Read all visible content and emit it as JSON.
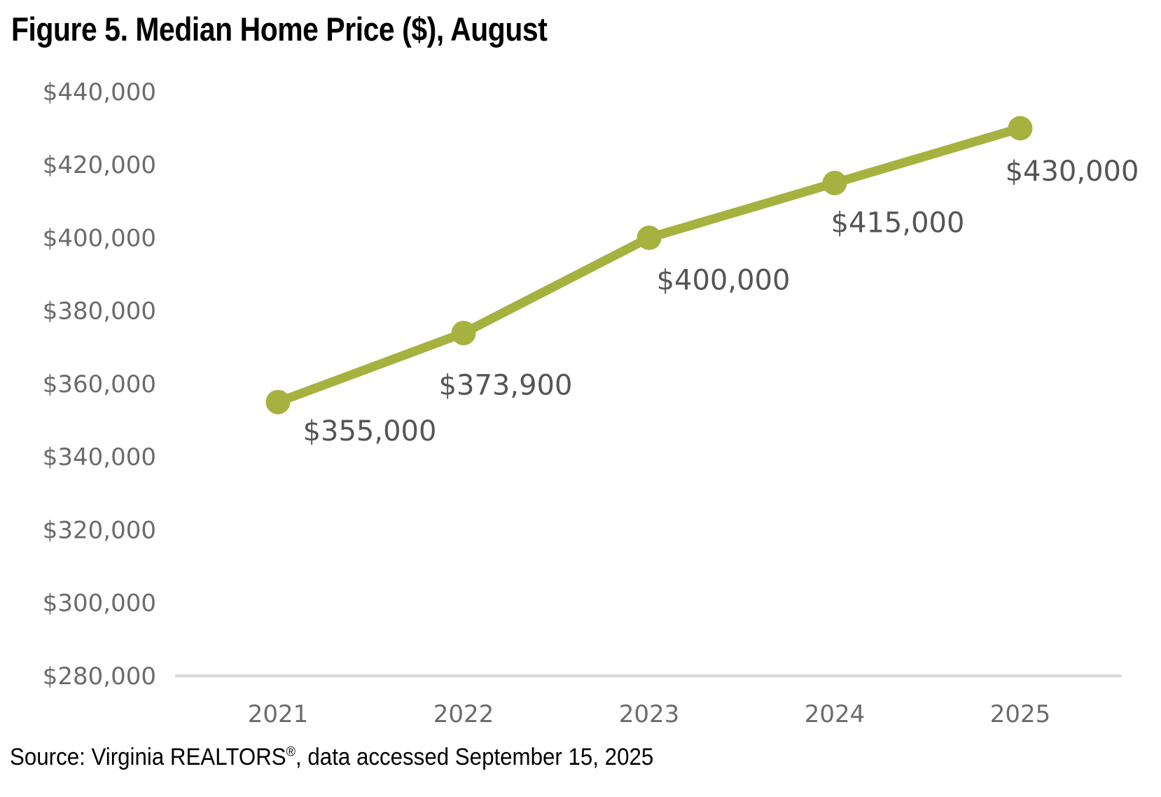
{
  "title": "Figure 5. Median Home Price ($), August",
  "source": {
    "prefix": "Source: Virginia REALTORS",
    "registered_mark": "®",
    "suffix": ", data accessed September 15, 2025"
  },
  "chart_data": {
    "type": "line",
    "title": "Figure 5. Median Home Price ($), August",
    "categories": [
      "2021",
      "2022",
      "2023",
      "2024",
      "2025"
    ],
    "series": [
      {
        "name": "Median Home Price ($), August",
        "values": [
          355000,
          373900,
          400000,
          415000,
          430000
        ]
      }
    ],
    "values": [
      355000,
      373900,
      400000,
      415000,
      430000
    ],
    "value_labels": [
      "$355,000",
      "$373,900",
      "$400,000",
      "$415,000",
      "$430,000"
    ],
    "xlabel": "",
    "ylabel": "",
    "y_axis": {
      "min": 280000,
      "max": 440000,
      "step": 20000,
      "tick_labels": [
        "$280,000",
        "$300,000",
        "$320,000",
        "$340,000",
        "$360,000",
        "$380,000",
        "$400,000",
        "$420,000",
        "$440,000"
      ]
    },
    "ylim": [
      280000,
      440000
    ],
    "grid": false,
    "legend_position": "none",
    "line_color": "#a6b23f",
    "marker_color": "#a6b23f",
    "axis_line_color": "#d9d9d9",
    "tick_label_color": "#6b6b6b",
    "data_label_color": "#555555",
    "title_color": "#000000",
    "source_color": "#000000"
  }
}
